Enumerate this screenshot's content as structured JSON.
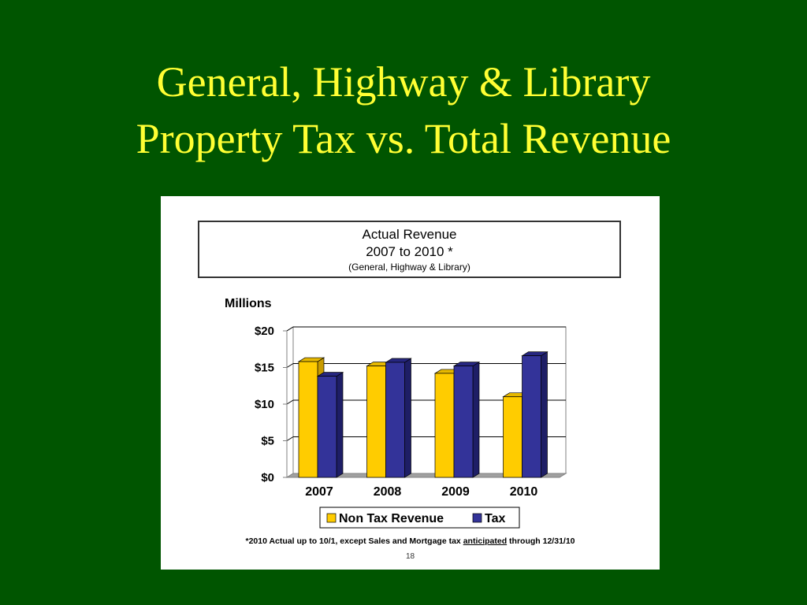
{
  "slide": {
    "title_line1": "General, Highway & Library",
    "title_line2": "Property Tax vs. Total Revenue",
    "footnote_before": "*2010 Actual up to 10/1, except Sales and Mortgage tax ",
    "footnote_underlined": "anticipated",
    "footnote_after": " through 12/31/10",
    "page_number": "18"
  },
  "chart_data": {
    "type": "bar",
    "title": "Actual Revenue",
    "subtitle": "2007 to 2010 *",
    "subtitle2": "(General, Highway & Library)",
    "ylabel": "Millions",
    "xlabel": "",
    "categories": [
      "2007",
      "2008",
      "2009",
      "2010"
    ],
    "series": [
      {
        "name": "Non Tax Revenue",
        "color": "#ffcc00",
        "values": [
          15.8,
          15.2,
          14.2,
          11.0
        ]
      },
      {
        "name": "Tax",
        "color": "#333399",
        "values": [
          13.8,
          15.7,
          15.2,
          16.6
        ]
      }
    ],
    "ylim": [
      0,
      20
    ],
    "yticks": [
      0,
      5,
      10,
      15,
      20
    ],
    "ytick_labels": [
      "$0",
      "$5",
      "$10",
      "$15",
      "$20"
    ],
    "grid": true,
    "legend_position": "bottom"
  }
}
